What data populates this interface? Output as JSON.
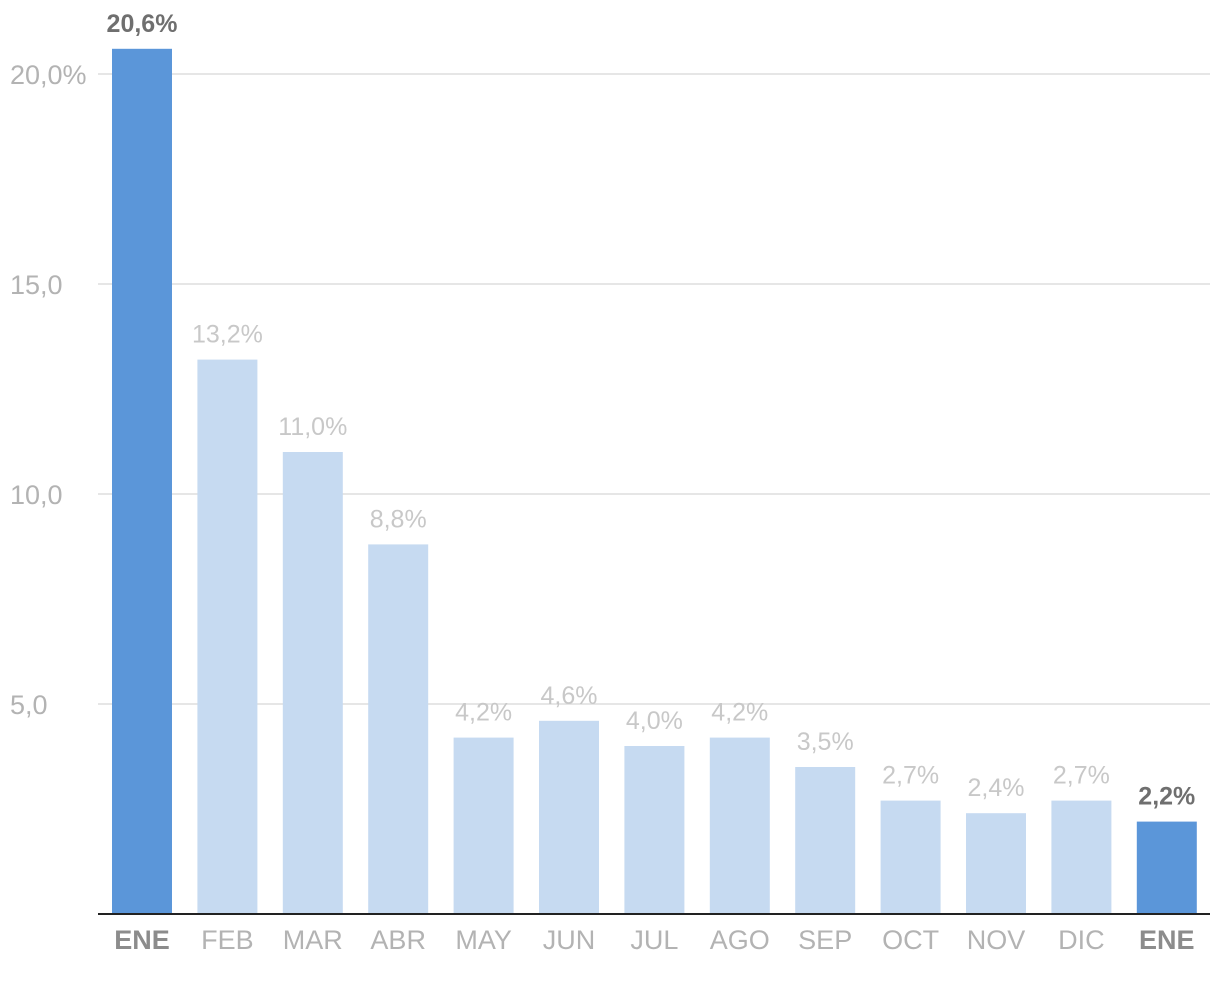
{
  "chart_data": {
    "type": "bar",
    "title": "",
    "xlabel": "",
    "ylabel": "",
    "ylim": [
      0,
      21.8
    ],
    "grid": true,
    "yticks": [
      5,
      10,
      15,
      20
    ],
    "ytick_labels": [
      "5,0",
      "10,0",
      "15,0",
      "20,0%"
    ],
    "categories": [
      "ENE",
      "FEB",
      "MAR",
      "ABR",
      "MAY",
      "JUN",
      "JUL",
      "AGO",
      "SEP",
      "OCT",
      "NOV",
      "DIC",
      "ENE"
    ],
    "values": [
      20.6,
      13.2,
      11.0,
      8.8,
      4.2,
      4.6,
      4.0,
      4.2,
      3.5,
      2.7,
      2.4,
      2.7,
      2.2
    ],
    "value_labels": [
      "20,6%",
      "13,2%",
      "11,0%",
      "8,8%",
      "4,2%",
      "4,6%",
      "4,0%",
      "4,2%",
      "3,5%",
      "2,7%",
      "2,4%",
      "2,7%",
      "2,2%"
    ],
    "highlighted": [
      true,
      false,
      false,
      false,
      false,
      false,
      false,
      false,
      false,
      false,
      false,
      false,
      true
    ],
    "colors": {
      "highlight": "#5b96d9",
      "normal": "#c6daf1",
      "grid": "#dedede",
      "axis": "#222222"
    }
  }
}
